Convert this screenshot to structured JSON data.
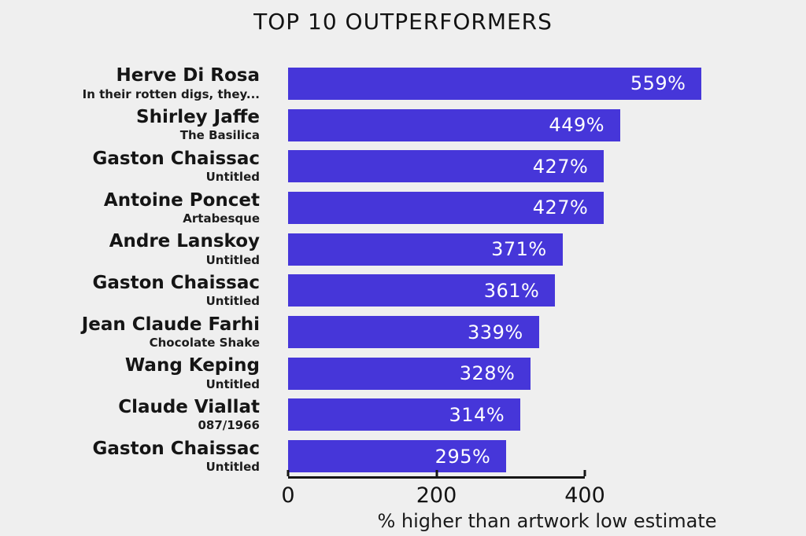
{
  "page": {
    "background_color": "#efefef",
    "text_color": "#131313"
  },
  "chart_data": {
    "type": "bar",
    "orientation": "horizontal",
    "title": "TOP 10 OUTPERFORMERS",
    "xlabel": "% higher than artwork low estimate",
    "ylabel": "",
    "bar_color": "#4636d9",
    "value_label_color": "#ffffff",
    "axis_ticks": [
      0,
      200,
      400
    ],
    "axis_tick_labels": [
      "0",
      "200",
      "400"
    ],
    "axis_display_max": 400,
    "grid": false,
    "legend": "none",
    "rows": [
      {
        "artist": "Herve Di Rosa",
        "artwork": "In their rotten digs, they...",
        "value": 559,
        "value_label": "559%"
      },
      {
        "artist": "Shirley Jaffe",
        "artwork": "The Basilica",
        "value": 449,
        "value_label": "449%"
      },
      {
        "artist": "Gaston Chaissac",
        "artwork": "Untitled",
        "value": 427,
        "value_label": "427%"
      },
      {
        "artist": "Antoine Poncet",
        "artwork": "Artabesque",
        "value": 427,
        "value_label": "427%"
      },
      {
        "artist": "Andre Lanskoy",
        "artwork": "Untitled",
        "value": 371,
        "value_label": "371%"
      },
      {
        "artist": "Gaston Chaissac",
        "artwork": "Untitled",
        "value": 361,
        "value_label": "361%"
      },
      {
        "artist": "Jean Claude Farhi",
        "artwork": "Chocolate Shake",
        "value": 339,
        "value_label": "339%"
      },
      {
        "artist": "Wang Keping",
        "artwork": "Untitled",
        "value": 328,
        "value_label": "328%"
      },
      {
        "artist": "Claude Viallat",
        "artwork": "087/1966",
        "value": 314,
        "value_label": "314%"
      },
      {
        "artist": "Gaston Chaissac",
        "artwork": "Untitled",
        "value": 295,
        "value_label": "295%"
      }
    ]
  }
}
